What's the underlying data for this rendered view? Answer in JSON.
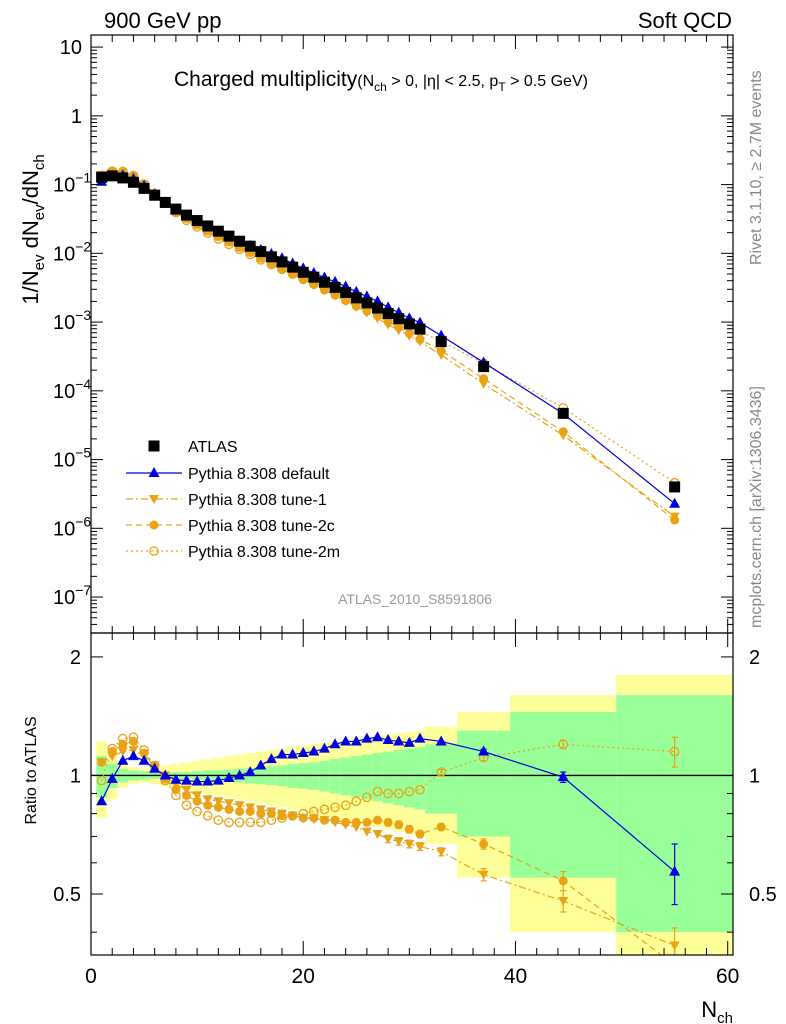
{
  "header": {
    "left": "900 GeV pp",
    "right": "Soft QCD"
  },
  "side_text": {
    "upper": "Rivet 3.1.10, ≥ 2.7M events",
    "lower": "mcplots.cern.ch [arXiv:1306.3436]"
  },
  "chart_data": {
    "type": "scatter",
    "title": "Charged multiplicity",
    "title_cuts": "(N_ch > 0, |η| < 2.5, p_T > 0.5 GeV)",
    "watermark": "ATLAS_2010_S8591806",
    "ylabel": "1/N_ev dN_ev/dN_ch",
    "ratio_ylabel": "Ratio to ATLAS",
    "xlabel": "N_ch",
    "xlim": [
      0,
      60.5
    ],
    "ylim": [
      3e-08,
      15
    ],
    "ylog": true,
    "ratio_ylim": [
      0.35,
      2.3
    ],
    "x_ticks": [
      0,
      20,
      40,
      60
    ],
    "ratio_ticks": [
      0.5,
      1,
      2
    ],
    "legend_position": "bottom-left",
    "colors": {
      "data": "#000000",
      "default": "#0000dd",
      "mc": "#e8a317",
      "band_inner": "#99ff99",
      "band_outer": "#ffff99"
    },
    "x": [
      1,
      2,
      3,
      4,
      5,
      6,
      7,
      8,
      9,
      10,
      11,
      12,
      13,
      14,
      15,
      16,
      17,
      18,
      19,
      20,
      21,
      22,
      23,
      24,
      25,
      26,
      27,
      28,
      29,
      30,
      31,
      33,
      37,
      44.5,
      55
    ],
    "atlas": [
      0.128,
      0.134,
      0.125,
      0.108,
      0.088,
      0.07,
      0.055,
      0.044,
      0.036,
      0.03,
      0.025,
      0.021,
      0.0178,
      0.015,
      0.0127,
      0.0106,
      0.0089,
      0.0075,
      0.0063,
      0.0053,
      0.0045,
      0.0038,
      0.0032,
      0.0027,
      0.00225,
      0.0019,
      0.0016,
      0.00133,
      0.00112,
      0.00094,
      0.00079,
      0.00052,
      0.000225,
      4.7e-05,
      4e-06
    ],
    "band_edges": [
      0.5,
      1.5,
      2.5,
      3.5,
      4.5,
      5.5,
      6.5,
      7.5,
      8.5,
      9.5,
      10.5,
      11.5,
      12.5,
      13.5,
      14.5,
      15.5,
      16.5,
      17.5,
      18.5,
      19.5,
      20.5,
      21.5,
      22.5,
      23.5,
      24.5,
      25.5,
      26.5,
      27.5,
      28.5,
      29.5,
      30.5,
      31.5,
      34.5,
      39.5,
      49.5,
      60.5
    ],
    "band_inner": [
      0.12,
      0.07,
      0.04,
      0.03,
      0.025,
      0.02,
      0.02,
      0.02,
      0.02,
      0.025,
      0.03,
      0.03,
      0.035,
      0.04,
      0.045,
      0.05,
      0.055,
      0.06,
      0.07,
      0.075,
      0.08,
      0.09,
      0.1,
      0.11,
      0.12,
      0.13,
      0.14,
      0.15,
      0.16,
      0.17,
      0.18,
      0.2,
      0.3,
      0.45,
      0.6,
      1.05
    ],
    "band_outer": [
      0.22,
      0.13,
      0.07,
      0.05,
      0.04,
      0.05,
      0.06,
      0.07,
      0.08,
      0.09,
      0.1,
      0.11,
      0.12,
      0.13,
      0.14,
      0.15,
      0.16,
      0.17,
      0.18,
      0.19,
      0.2,
      0.21,
      0.22,
      0.23,
      0.24,
      0.25,
      0.26,
      0.27,
      0.28,
      0.29,
      0.3,
      0.33,
      0.45,
      0.6,
      0.8,
      1.3
    ],
    "series": [
      {
        "name": "ATLAS",
        "marker": "square",
        "values": [
          0.128,
          0.134,
          0.125,
          0.108,
          0.088,
          0.07,
          0.055,
          0.044,
          0.036,
          0.03,
          0.025,
          0.021,
          0.0178,
          0.015,
          0.0127,
          0.0106,
          0.0089,
          0.0075,
          0.0063,
          0.0053,
          0.0045,
          0.0038,
          0.0032,
          0.0027,
          0.00225,
          0.0019,
          0.0016,
          0.00133,
          0.00112,
          0.00094,
          0.00079,
          0.00052,
          0.000225,
          4.7e-05,
          4e-06
        ]
      },
      {
        "name": "Pythia 8.308 default",
        "marker": "triangle-up",
        "line": "solid",
        "ratio": [
          0.86,
          0.98,
          1.09,
          1.12,
          1.09,
          1.04,
          1.0,
          0.975,
          0.97,
          0.965,
          0.965,
          0.97,
          0.985,
          1.0,
          1.02,
          1.06,
          1.1,
          1.13,
          1.13,
          1.14,
          1.15,
          1.17,
          1.2,
          1.22,
          1.22,
          1.24,
          1.25,
          1.23,
          1.22,
          1.21,
          1.24,
          1.22,
          1.15,
          0.99,
          0.57
        ],
        "ratio_err": [
          0.01,
          0.01,
          0.01,
          0.01,
          0.01,
          0.01,
          0.01,
          0.01,
          0.01,
          0.01,
          0.01,
          0.01,
          0.01,
          0.01,
          0.01,
          0.01,
          0.01,
          0.01,
          0.01,
          0.01,
          0.01,
          0.01,
          0.01,
          0.01,
          0.01,
          0.01,
          0.01,
          0.01,
          0.01,
          0.01,
          0.01,
          0.01,
          0.015,
          0.03,
          0.1
        ]
      },
      {
        "name": "Pythia 8.308 tune-1",
        "marker": "triangle-down",
        "line": "dashdot",
        "ratio": [
          1.08,
          1.12,
          1.15,
          1.16,
          1.12,
          1.06,
          1.0,
          0.95,
          0.92,
          0.89,
          0.87,
          0.86,
          0.85,
          0.84,
          0.83,
          0.82,
          0.81,
          0.8,
          0.79,
          0.78,
          0.775,
          0.77,
          0.76,
          0.75,
          0.74,
          0.72,
          0.71,
          0.69,
          0.68,
          0.67,
          0.66,
          0.64,
          0.56,
          0.48,
          0.37
        ],
        "ratio_err": [
          0.01,
          0.01,
          0.01,
          0.01,
          0.01,
          0.01,
          0.01,
          0.01,
          0.01,
          0.01,
          0.01,
          0.01,
          0.01,
          0.01,
          0.01,
          0.01,
          0.01,
          0.01,
          0.01,
          0.01,
          0.01,
          0.01,
          0.01,
          0.01,
          0.01,
          0.01,
          0.01,
          0.015,
          0.015,
          0.015,
          0.015,
          0.015,
          0.02,
          0.03,
          0.04
        ]
      },
      {
        "name": "Pythia 8.308 tune-2c",
        "marker": "circle-filled",
        "line": "dashed",
        "ratio": [
          1.08,
          1.15,
          1.2,
          1.22,
          1.14,
          1.05,
          0.98,
          0.92,
          0.89,
          0.86,
          0.84,
          0.83,
          0.82,
          0.81,
          0.81,
          0.8,
          0.8,
          0.79,
          0.79,
          0.78,
          0.78,
          0.77,
          0.77,
          0.76,
          0.76,
          0.76,
          0.77,
          0.76,
          0.75,
          0.73,
          0.71,
          0.74,
          0.67,
          0.54,
          0.33
        ],
        "ratio_err": [
          0.01,
          0.01,
          0.01,
          0.01,
          0.01,
          0.01,
          0.01,
          0.01,
          0.01,
          0.01,
          0.01,
          0.01,
          0.01,
          0.01,
          0.01,
          0.01,
          0.01,
          0.01,
          0.01,
          0.01,
          0.01,
          0.01,
          0.01,
          0.01,
          0.01,
          0.01,
          0.01,
          0.015,
          0.015,
          0.015,
          0.015,
          0.015,
          0.02,
          0.03,
          0.04
        ]
      },
      {
        "name": "Pythia 8.308 tune-2m",
        "marker": "circle-open",
        "line": "dotted",
        "ratio": [
          0.97,
          1.17,
          1.24,
          1.25,
          1.16,
          1.06,
          0.97,
          0.89,
          0.84,
          0.81,
          0.79,
          0.77,
          0.76,
          0.76,
          0.76,
          0.76,
          0.77,
          0.78,
          0.79,
          0.8,
          0.81,
          0.82,
          0.83,
          0.84,
          0.86,
          0.88,
          0.91,
          0.9,
          0.9,
          0.91,
          0.92,
          1.02,
          1.11,
          1.2,
          1.15
        ],
        "ratio_err": [
          0.01,
          0.01,
          0.01,
          0.01,
          0.01,
          0.01,
          0.01,
          0.01,
          0.01,
          0.01,
          0.01,
          0.01,
          0.01,
          0.01,
          0.01,
          0.01,
          0.01,
          0.01,
          0.01,
          0.01,
          0.01,
          0.01,
          0.01,
          0.01,
          0.01,
          0.01,
          0.01,
          0.01,
          0.01,
          0.01,
          0.01,
          0.015,
          0.02,
          0.03,
          0.1
        ]
      }
    ]
  }
}
